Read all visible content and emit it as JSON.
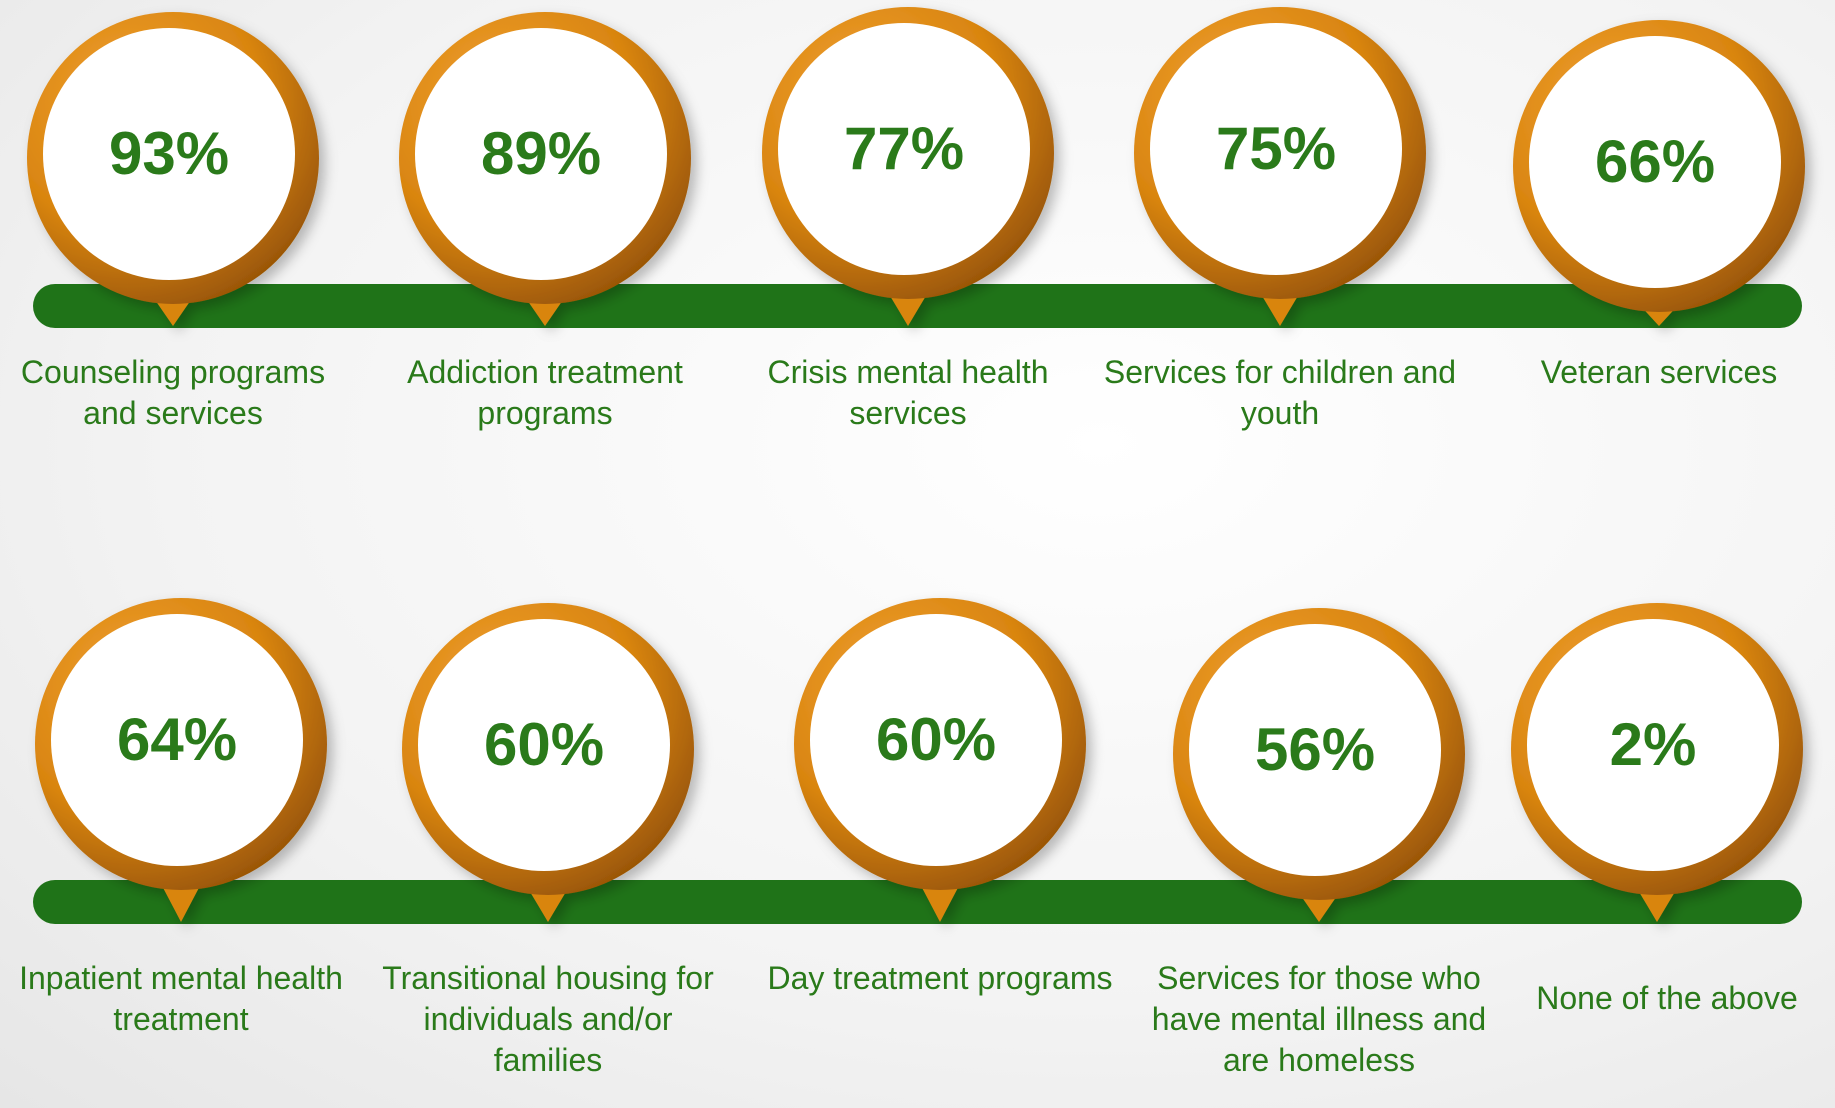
{
  "chart_data": {
    "type": "pin-infographic",
    "categories": [
      "Counseling programs and services",
      "Addiction treatment programs",
      "Crisis mental health services",
      "Services for children and youth",
      "Veteran services",
      "Inpatient mental health treatment",
      "Transitional housing for individuals and/or families",
      "Day treatment programs",
      "Services for those who have mental illness and are homeless",
      "None of the above"
    ],
    "values": [
      93,
      89,
      77,
      75,
      66,
      64,
      60,
      60,
      56,
      2
    ],
    "value_labels": [
      "93%",
      "89%",
      "77%",
      "75%",
      "66%",
      "64%",
      "60%",
      "60%",
      "56%",
      "2%"
    ],
    "color": "#d98510",
    "bar_color": "#1f7318",
    "text_color": "#2a7a1a"
  }
}
